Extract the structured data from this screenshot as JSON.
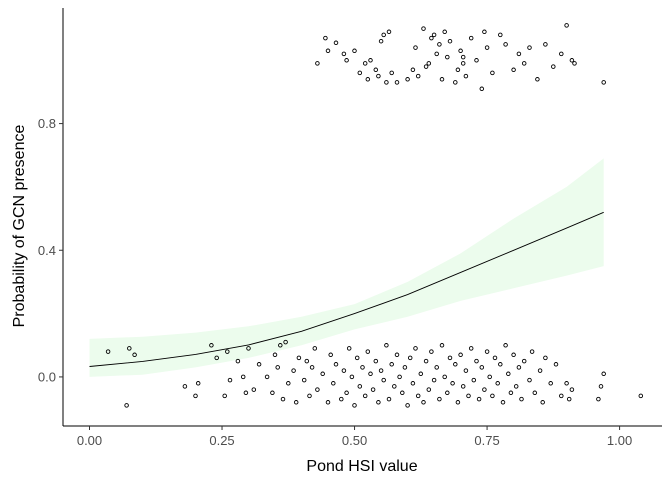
{
  "chart_data": {
    "type": "scatter",
    "title": "",
    "xlabel": "Pond HSI value",
    "ylabel": "Probability of GCN presence",
    "xlim": [
      -0.05,
      1.08
    ],
    "ylim": [
      -0.155,
      1.165
    ],
    "x_ticks": [
      0.0,
      0.25,
      0.5,
      0.75,
      1.0
    ],
    "x_tick_labels": [
      "0.00",
      "0.25",
      "0.50",
      "0.75",
      "1.00"
    ],
    "y_ticks": [
      0.0,
      0.4,
      0.8
    ],
    "y_tick_labels": [
      "0.0",
      "0.4",
      "0.8"
    ],
    "grid": false,
    "legend": "none",
    "colors": {
      "points": "#000000",
      "fit_line": "#000000",
      "ci_band": "#ecfced",
      "axis": "#000000",
      "tick_label": "#4d4d4d"
    },
    "fit": {
      "type": "logistic",
      "x": [
        0.0,
        0.1,
        0.2,
        0.3,
        0.4,
        0.5,
        0.6,
        0.7,
        0.8,
        0.9,
        0.97
      ],
      "y": [
        0.033,
        0.049,
        0.071,
        0.101,
        0.144,
        0.2,
        0.26,
        0.33,
        0.4,
        0.47,
        0.52
      ],
      "ci_lower": [
        0.0,
        0.007,
        0.03,
        0.06,
        0.1,
        0.15,
        0.19,
        0.24,
        0.28,
        0.32,
        0.35
      ],
      "ci_upper": [
        0.12,
        0.127,
        0.14,
        0.16,
        0.19,
        0.23,
        0.3,
        0.39,
        0.5,
        0.6,
        0.69
      ]
    },
    "series": [
      {
        "values": [
          [
            0.43,
            0.99
          ],
          [
            0.445,
            1.07
          ],
          [
            0.45,
            1.03
          ],
          [
            0.465,
            1.055
          ],
          [
            0.48,
            1.02
          ],
          [
            0.485,
            1.0
          ],
          [
            0.5,
            1.03
          ],
          [
            0.51,
            0.96
          ],
          [
            0.52,
            0.99
          ],
          [
            0.525,
            0.94
          ],
          [
            0.53,
            1.0
          ],
          [
            0.54,
            0.97
          ],
          [
            0.545,
            0.95
          ],
          [
            0.55,
            1.06
          ],
          [
            0.555,
            1.08
          ],
          [
            0.56,
            0.93
          ],
          [
            0.565,
            1.09
          ],
          [
            0.57,
            0.96
          ],
          [
            0.58,
            0.93
          ],
          [
            0.6,
            0.94
          ],
          [
            0.61,
            0.97
          ],
          [
            0.615,
            1.04
          ],
          [
            0.62,
            0.95
          ],
          [
            0.63,
            1.1
          ],
          [
            0.635,
            0.98
          ],
          [
            0.64,
            0.99
          ],
          [
            0.645,
            1.07
          ],
          [
            0.65,
            1.08
          ],
          [
            0.655,
            1.02
          ],
          [
            0.66,
            1.05
          ],
          [
            0.665,
            0.94
          ],
          [
            0.67,
            1.09
          ],
          [
            0.675,
            1.01
          ],
          [
            0.68,
            1.06
          ],
          [
            0.69,
            0.93
          ],
          [
            0.695,
            0.97
          ],
          [
            0.7,
            1.03
          ],
          [
            0.705,
            0.99
          ],
          [
            0.71,
            0.95
          ],
          [
            0.72,
            1.07
          ],
          [
            0.73,
            1.0
          ],
          [
            0.74,
            0.91
          ],
          [
            0.745,
            1.09
          ],
          [
            0.75,
            1.04
          ],
          [
            0.76,
            0.96
          ],
          [
            0.775,
            1.08
          ],
          [
            0.785,
            1.05
          ],
          [
            0.8,
            0.97
          ],
          [
            0.81,
            1.02
          ],
          [
            0.82,
            0.99
          ],
          [
            0.83,
            1.04
          ],
          [
            0.845,
            0.94
          ],
          [
            0.86,
            1.05
          ],
          [
            0.875,
            0.98
          ],
          [
            0.89,
            1.02
          ],
          [
            0.9,
            1.11
          ],
          [
            0.91,
            1.0
          ],
          [
            0.915,
            0.99
          ],
          [
            0.97,
            0.93
          ],
          [
            0.705,
            1.01
          ]
        ]
      },
      {
        "values": [
          [
            0.035,
            0.08
          ],
          [
            0.07,
            -0.09
          ],
          [
            0.075,
            0.09
          ],
          [
            0.085,
            0.07
          ],
          [
            0.18,
            -0.03
          ],
          [
            0.2,
            -0.06
          ],
          [
            0.205,
            -0.02
          ],
          [
            0.23,
            0.1
          ],
          [
            0.24,
            0.06
          ],
          [
            0.255,
            -0.06
          ],
          [
            0.26,
            0.08
          ],
          [
            0.265,
            -0.01
          ],
          [
            0.28,
            0.05
          ],
          [
            0.29,
            0.0
          ],
          [
            0.295,
            -0.05
          ],
          [
            0.3,
            0.09
          ],
          [
            0.31,
            -0.04
          ],
          [
            0.32,
            0.04
          ],
          [
            0.335,
            0.0
          ],
          [
            0.345,
            -0.05
          ],
          [
            0.35,
            0.07
          ],
          [
            0.355,
            0.03
          ],
          [
            0.36,
            0.1
          ],
          [
            0.365,
            -0.07
          ],
          [
            0.37,
            0.11
          ],
          [
            0.375,
            -0.02
          ],
          [
            0.385,
            0.02
          ],
          [
            0.39,
            -0.08
          ],
          [
            0.395,
            0.06
          ],
          [
            0.405,
            -0.01
          ],
          [
            0.41,
            0.05
          ],
          [
            0.415,
            -0.06
          ],
          [
            0.42,
            0.03
          ],
          [
            0.425,
            0.09
          ],
          [
            0.43,
            -0.04
          ],
          [
            0.44,
            0.01
          ],
          [
            0.45,
            -0.08
          ],
          [
            0.455,
            0.07
          ],
          [
            0.46,
            -0.02
          ],
          [
            0.465,
            0.04
          ],
          [
            0.475,
            -0.07
          ],
          [
            0.48,
            0.02
          ],
          [
            0.485,
            -0.05
          ],
          [
            0.49,
            0.09
          ],
          [
            0.495,
            0.0
          ],
          [
            0.5,
            -0.09
          ],
          [
            0.505,
            0.06
          ],
          [
            0.51,
            -0.03
          ],
          [
            0.515,
            0.03
          ],
          [
            0.52,
            -0.06
          ],
          [
            0.525,
            0.08
          ],
          [
            0.53,
            0.01
          ],
          [
            0.535,
            -0.04
          ],
          [
            0.54,
            0.05
          ],
          [
            0.545,
            -0.08
          ],
          [
            0.55,
            0.02
          ],
          [
            0.555,
            -0.01
          ],
          [
            0.56,
            0.1
          ],
          [
            0.565,
            -0.07
          ],
          [
            0.57,
            0.04
          ],
          [
            0.575,
            -0.03
          ],
          [
            0.58,
            0.07
          ],
          [
            0.585,
            0.0
          ],
          [
            0.59,
            -0.05
          ],
          [
            0.595,
            0.03
          ],
          [
            0.6,
            -0.09
          ],
          [
            0.605,
            0.06
          ],
          [
            0.61,
            -0.02
          ],
          [
            0.615,
            0.09
          ],
          [
            0.62,
            -0.06
          ],
          [
            0.625,
            0.01
          ],
          [
            0.63,
            -0.08
          ],
          [
            0.635,
            0.05
          ],
          [
            0.64,
            -0.04
          ],
          [
            0.645,
            0.08
          ],
          [
            0.65,
            -0.01
          ],
          [
            0.655,
            0.03
          ],
          [
            0.66,
            -0.07
          ],
          [
            0.665,
            0.1
          ],
          [
            0.67,
            0.0
          ],
          [
            0.675,
            -0.05
          ],
          [
            0.68,
            0.06
          ],
          [
            0.685,
            -0.02
          ],
          [
            0.69,
            0.04
          ],
          [
            0.695,
            -0.08
          ],
          [
            0.7,
            0.07
          ],
          [
            0.705,
            -0.03
          ],
          [
            0.71,
            0.02
          ],
          [
            0.715,
            -0.06
          ],
          [
            0.72,
            0.09
          ],
          [
            0.725,
            -0.01
          ],
          [
            0.73,
            0.05
          ],
          [
            0.735,
            -0.07
          ],
          [
            0.74,
            0.03
          ],
          [
            0.745,
            -0.04
          ],
          [
            0.75,
            0.08
          ],
          [
            0.755,
            0.0
          ],
          [
            0.76,
            -0.06
          ],
          [
            0.765,
            0.06
          ],
          [
            0.77,
            -0.02
          ],
          [
            0.775,
            0.04
          ],
          [
            0.78,
            -0.08
          ],
          [
            0.785,
            0.1
          ],
          [
            0.79,
            0.01
          ],
          [
            0.795,
            -0.05
          ],
          [
            0.8,
            0.07
          ],
          [
            0.805,
            -0.03
          ],
          [
            0.81,
            0.03
          ],
          [
            0.815,
            -0.07
          ],
          [
            0.82,
            0.05
          ],
          [
            0.83,
            -0.01
          ],
          [
            0.835,
            0.08
          ],
          [
            0.84,
            -0.05
          ],
          [
            0.85,
            0.02
          ],
          [
            0.855,
            -0.08
          ],
          [
            0.86,
            0.06
          ],
          [
            0.87,
            -0.02
          ],
          [
            0.88,
            0.04
          ],
          [
            0.89,
            -0.06
          ],
          [
            0.9,
            -0.02
          ],
          [
            0.905,
            -0.07
          ],
          [
            0.91,
            -0.04
          ],
          [
            0.96,
            -0.07
          ],
          [
            0.965,
            -0.03
          ],
          [
            0.97,
            0.01
          ],
          [
            1.04,
            -0.06
          ]
        ]
      }
    ]
  }
}
